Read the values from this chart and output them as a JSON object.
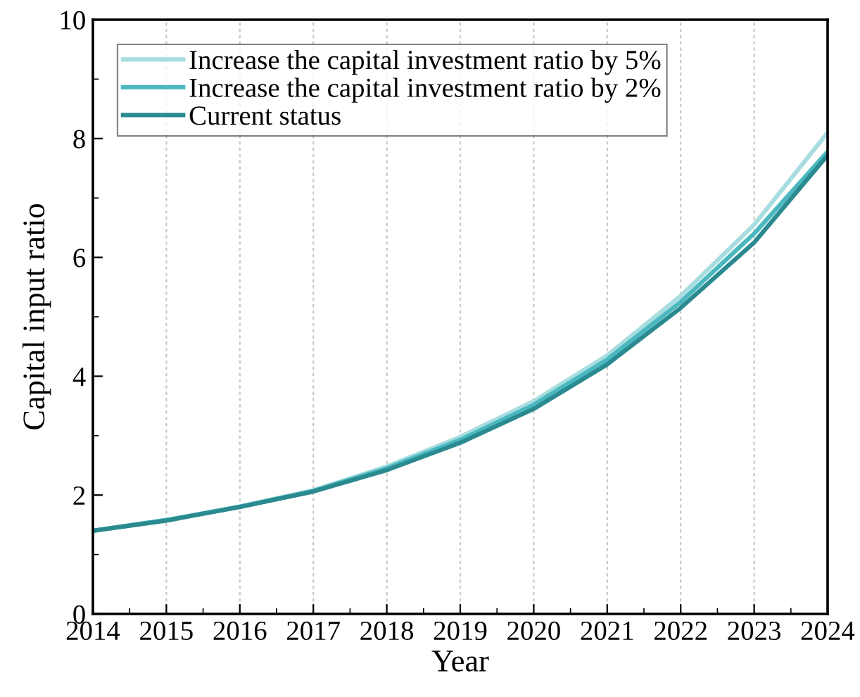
{
  "chart_data": {
    "type": "line",
    "xlabel": "Year",
    "ylabel": "Capital input ratio",
    "x": [
      2014,
      2015,
      2016,
      2017,
      2018,
      2019,
      2020,
      2021,
      2022,
      2023,
      2024
    ],
    "series": [
      {
        "name": "Increase the capital investment ratio by 5%",
        "color": "#a8dde0",
        "values": [
          1.4,
          1.58,
          1.81,
          2.08,
          2.48,
          2.98,
          3.58,
          4.35,
          5.35,
          6.55,
          8.1
        ]
      },
      {
        "name": "Increase the capital investment ratio by 2%",
        "color": "#4bb8c0",
        "values": [
          1.4,
          1.58,
          1.8,
          2.07,
          2.45,
          2.93,
          3.52,
          4.28,
          5.25,
          6.4,
          7.78
        ]
      },
      {
        "name": "Current status",
        "color": "#2a8a90",
        "values": [
          1.4,
          1.57,
          1.8,
          2.06,
          2.42,
          2.88,
          3.45,
          4.2,
          5.15,
          6.25,
          7.72
        ]
      }
    ],
    "xlim": [
      2014,
      2024
    ],
    "xticks": [
      2014,
      2015,
      2016,
      2017,
      2018,
      2019,
      2020,
      2021,
      2022,
      2023,
      2024
    ],
    "ylim": [
      0,
      10
    ],
    "yticks": [
      0,
      2,
      4,
      6,
      8,
      10
    ],
    "grid": "x",
    "legend": "top left",
    "marker": "none",
    "line_style": "solid"
  }
}
